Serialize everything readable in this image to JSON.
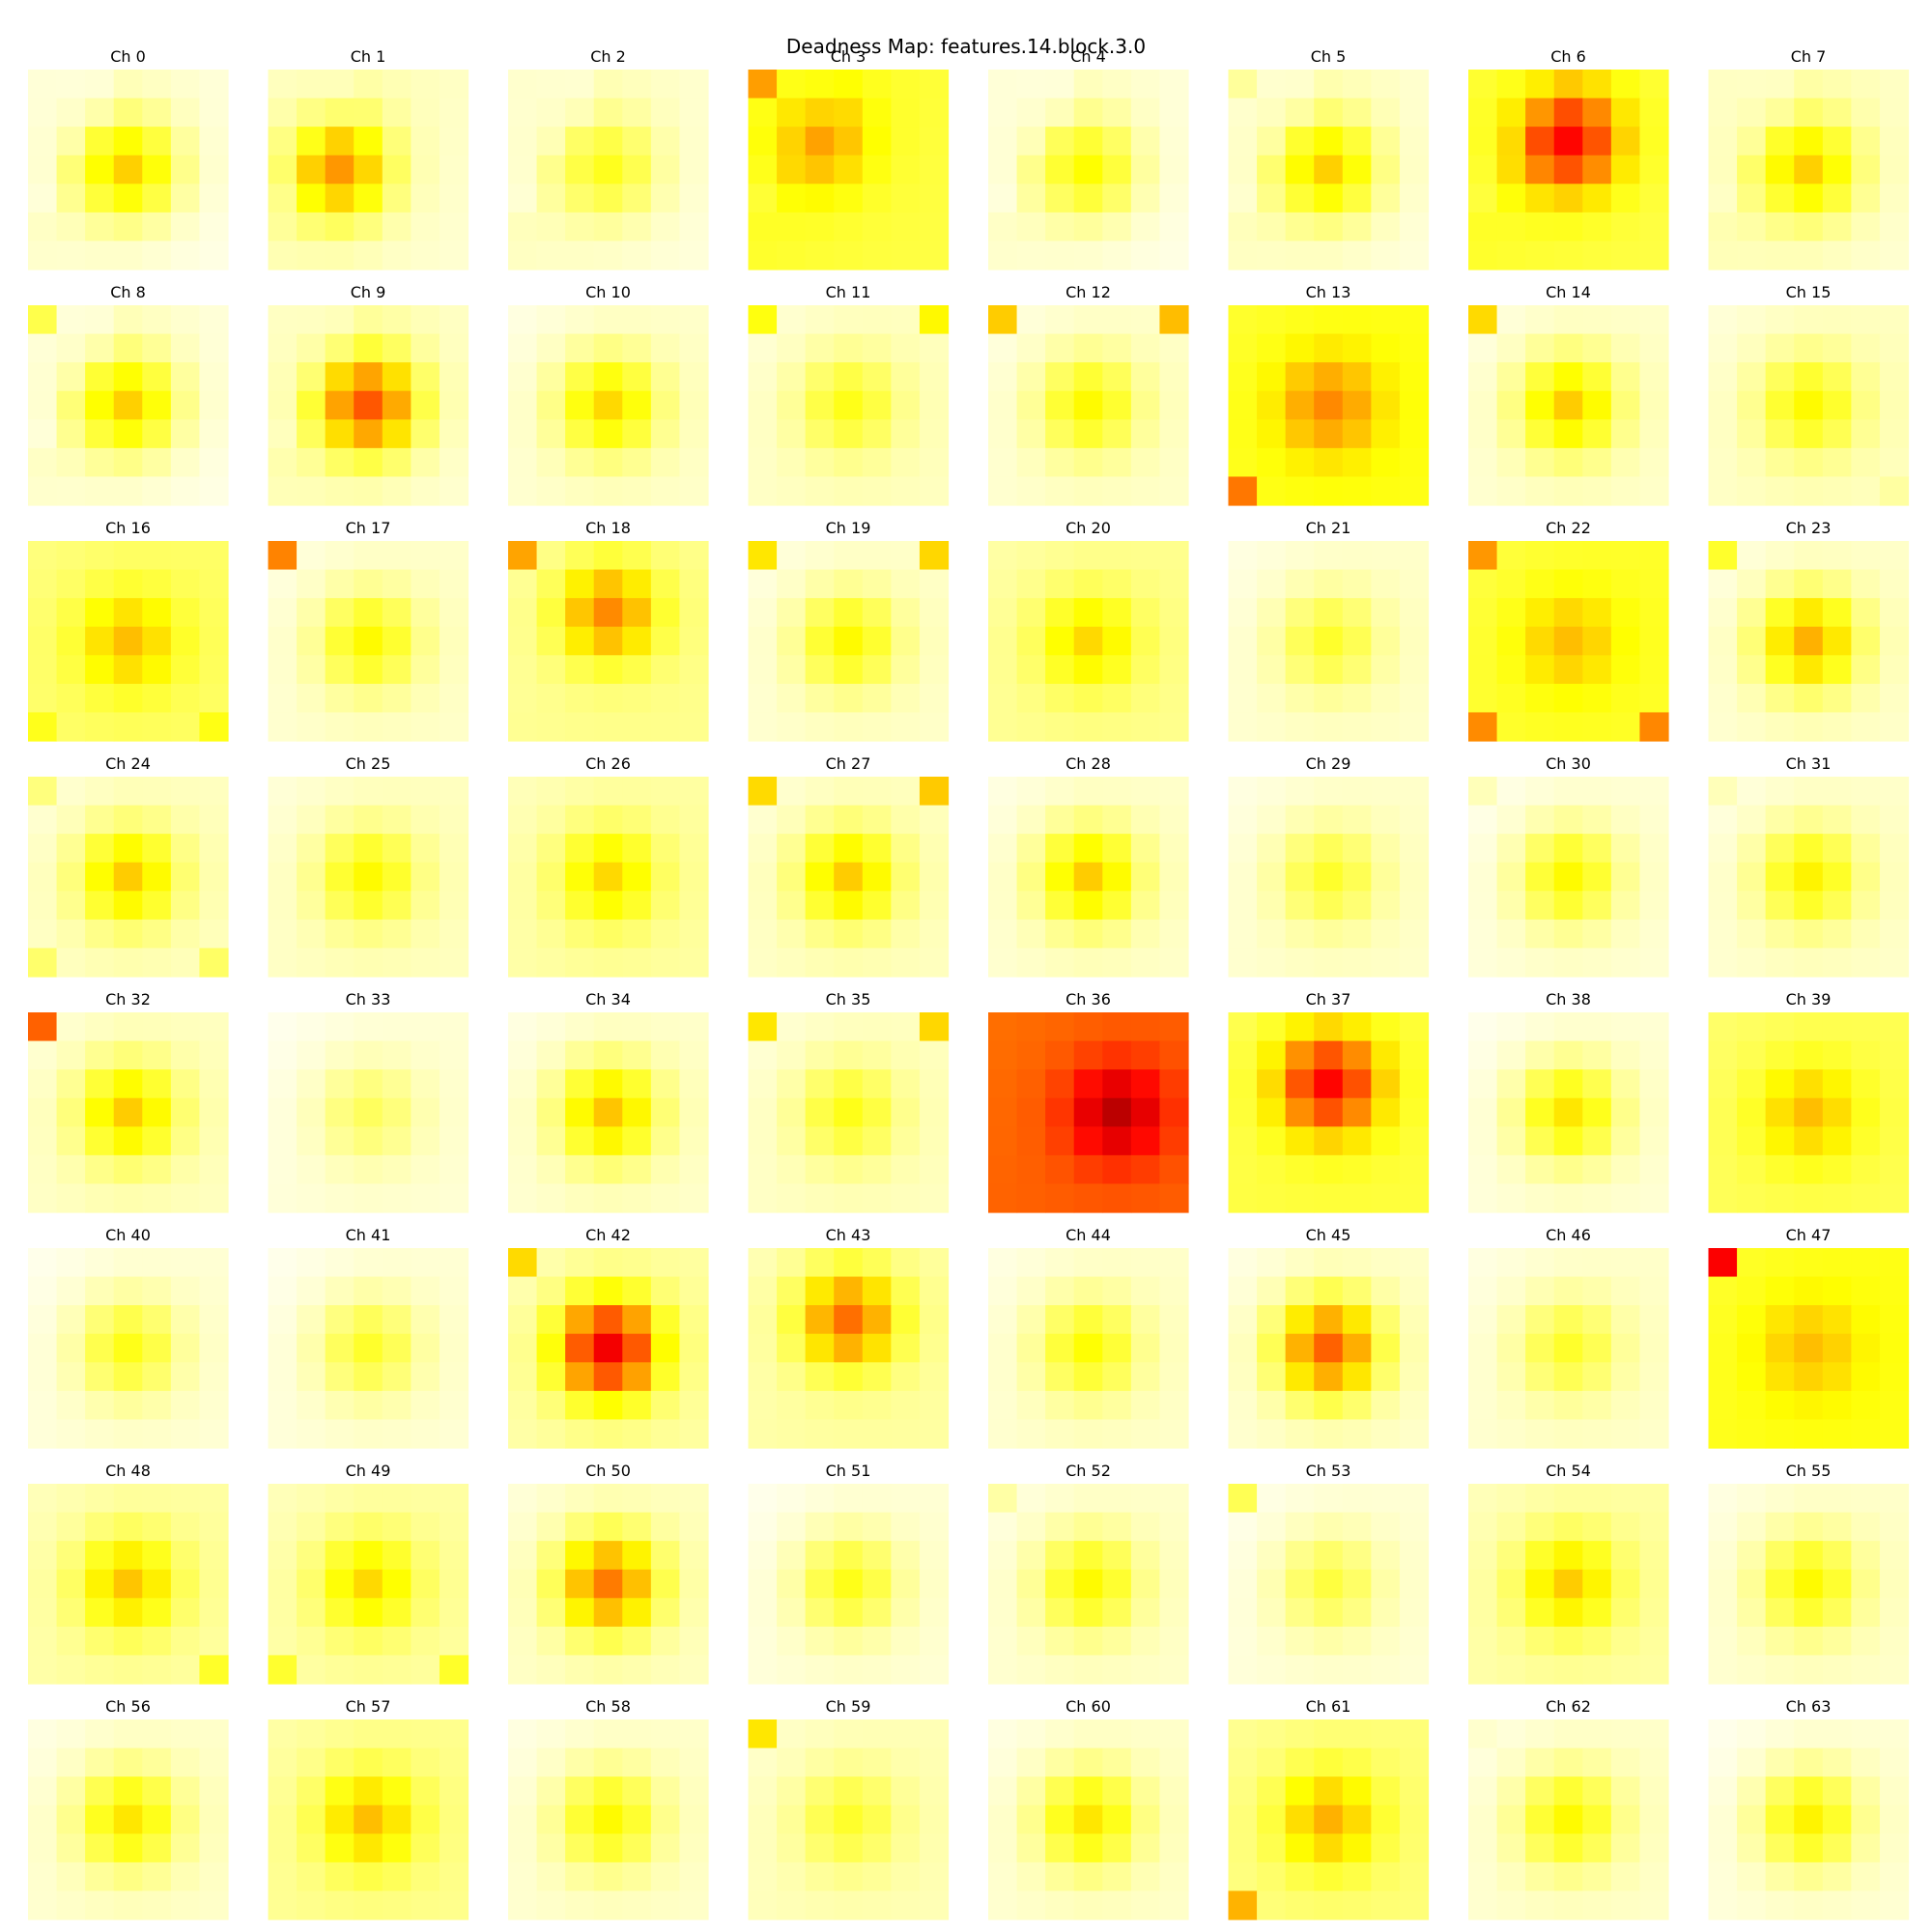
{
  "chart_data": {
    "type": "heatmap",
    "title": "Deadness Map: features.14.block.3.0",
    "colormap": "hot_r",
    "vmin": 0.0,
    "vmax": 1.0,
    "grid": false,
    "panels": [
      {
        "title": "Ch 0",
        "mode": "center",
        "edge": 0.04,
        "peak": 0.32,
        "corner": 0.04,
        "corner_pos": "",
        "offset": [
          0,
          0
        ]
      },
      {
        "title": "Ch 1",
        "mode": "center",
        "edge": 0.06,
        "peak": 0.4,
        "corner": 0.06,
        "corner_pos": "",
        "offset": [
          -1,
          0
        ]
      },
      {
        "title": "Ch 2",
        "mode": "center",
        "edge": 0.05,
        "peak": 0.22,
        "corner": 0.05,
        "corner_pos": "",
        "offset": [
          0,
          0
        ]
      },
      {
        "title": "Ch 3",
        "mode": "center",
        "edge": 0.2,
        "peak": 0.38,
        "corner": 0.4,
        "corner_pos": "tl",
        "offset": [
          -1,
          -1
        ]
      },
      {
        "title": "Ch 4",
        "mode": "center",
        "edge": 0.04,
        "peak": 0.25,
        "corner": 0.04,
        "corner_pos": "",
        "offset": [
          0,
          0
        ]
      },
      {
        "title": "Ch 5",
        "mode": "center",
        "edge": 0.05,
        "peak": 0.32,
        "corner": 0.1,
        "corner_pos": "tl",
        "offset": [
          0,
          0
        ]
      },
      {
        "title": "Ch 6",
        "mode": "center",
        "edge": 0.2,
        "peak": 0.62,
        "corner": 0.2,
        "corner_pos": "",
        "offset": [
          0,
          -1
        ]
      },
      {
        "title": "Ch 7",
        "mode": "center",
        "edge": 0.06,
        "peak": 0.32,
        "corner": 0.06,
        "corner_pos": "",
        "offset": [
          0,
          0
        ]
      },
      {
        "title": "Ch 8",
        "mode": "center",
        "edge": 0.04,
        "peak": 0.32,
        "corner": 0.18,
        "corner_pos": "tl",
        "offset": [
          0,
          0
        ]
      },
      {
        "title": "Ch 9",
        "mode": "center",
        "edge": 0.06,
        "peak": 0.5,
        "corner": 0.06,
        "corner_pos": "",
        "offset": [
          0,
          0
        ]
      },
      {
        "title": "Ch 10",
        "mode": "center",
        "edge": 0.04,
        "peak": 0.3,
        "corner": 0.04,
        "corner_pos": "",
        "offset": [
          0,
          0
        ]
      },
      {
        "title": "Ch 11",
        "mode": "center",
        "edge": 0.05,
        "peak": 0.22,
        "corner": 0.25,
        "corner_pos": "tl,tr",
        "offset": [
          0,
          0
        ]
      },
      {
        "title": "Ch 12",
        "mode": "center",
        "edge": 0.04,
        "peak": 0.25,
        "corner": 0.34,
        "corner_pos": "tl,tr",
        "offset": [
          0,
          0
        ]
      },
      {
        "title": "Ch 13",
        "mode": "center",
        "edge": 0.22,
        "peak": 0.42,
        "corner": 0.45,
        "corner_pos": "bl",
        "offset": [
          0,
          0
        ]
      },
      {
        "title": "Ch 14",
        "mode": "center",
        "edge": 0.04,
        "peak": 0.32,
        "corner": 0.32,
        "corner_pos": "tl",
        "offset": [
          0,
          0
        ]
      },
      {
        "title": "Ch 15",
        "mode": "center",
        "edge": 0.05,
        "peak": 0.25,
        "corner": 0.08,
        "corner_pos": "br",
        "offset": [
          0,
          0
        ]
      },
      {
        "title": "Ch 16",
        "mode": "center",
        "edge": 0.14,
        "peak": 0.34,
        "corner": 0.22,
        "corner_pos": "bl,br",
        "offset": [
          0,
          0
        ]
      },
      {
        "title": "Ch 17",
        "mode": "center",
        "edge": 0.04,
        "peak": 0.25,
        "corner": 0.45,
        "corner_pos": "tl",
        "offset": [
          0,
          0
        ]
      },
      {
        "title": "Ch 18",
        "mode": "center",
        "edge": 0.1,
        "peak": 0.42,
        "corner": 0.4,
        "corner_pos": "tl",
        "offset": [
          0,
          -1
        ]
      },
      {
        "title": "Ch 19",
        "mode": "center",
        "edge": 0.04,
        "peak": 0.25,
        "corner": 0.3,
        "corner_pos": "tl,tr",
        "offset": [
          0,
          0
        ]
      },
      {
        "title": "Ch 20",
        "mode": "center",
        "edge": 0.1,
        "peak": 0.3,
        "corner": 0.1,
        "corner_pos": "",
        "offset": [
          0,
          0
        ]
      },
      {
        "title": "Ch 21",
        "mode": "center",
        "edge": 0.04,
        "peak": 0.2,
        "corner": 0.04,
        "corner_pos": "",
        "offset": [
          0,
          0
        ]
      },
      {
        "title": "Ch 22",
        "mode": "center",
        "edge": 0.2,
        "peak": 0.34,
        "corner": 0.42,
        "corner_pos": "bl,tl,br",
        "offset": [
          0,
          0
        ]
      },
      {
        "title": "Ch 23",
        "mode": "center",
        "edge": 0.04,
        "peak": 0.36,
        "corner": 0.22,
        "corner_pos": "tl",
        "offset": [
          0,
          0
        ]
      },
      {
        "title": "Ch 24",
        "mode": "center",
        "edge": 0.05,
        "peak": 0.32,
        "corner": 0.14,
        "corner_pos": "tl,bl,br",
        "offset": [
          0,
          0
        ]
      },
      {
        "title": "Ch 25",
        "mode": "center",
        "edge": 0.05,
        "peak": 0.25,
        "corner": 0.05,
        "corner_pos": "",
        "offset": [
          0,
          0
        ]
      },
      {
        "title": "Ch 26",
        "mode": "center",
        "edge": 0.08,
        "peak": 0.3,
        "corner": 0.08,
        "corner_pos": "",
        "offset": [
          0,
          0
        ]
      },
      {
        "title": "Ch 27",
        "mode": "center",
        "edge": 0.05,
        "peak": 0.32,
        "corner": 0.32,
        "corner_pos": "tl,tr",
        "offset": [
          0,
          0
        ]
      },
      {
        "title": "Ch 28",
        "mode": "center",
        "edge": 0.04,
        "peak": 0.32,
        "corner": 0.04,
        "corner_pos": "",
        "offset": [
          0,
          0
        ]
      },
      {
        "title": "Ch 29",
        "mode": "center",
        "edge": 0.04,
        "peak": 0.2,
        "corner": 0.04,
        "corner_pos": "",
        "offset": [
          0,
          0
        ]
      },
      {
        "title": "Ch 30",
        "mode": "center",
        "edge": 0.03,
        "peak": 0.25,
        "corner": 0.08,
        "corner_pos": "tl",
        "offset": [
          0,
          0
        ]
      },
      {
        "title": "Ch 31",
        "mode": "center",
        "edge": 0.04,
        "peak": 0.26,
        "corner": 0.08,
        "corner_pos": "tl",
        "offset": [
          0,
          0
        ]
      },
      {
        "title": "Ch 32",
        "mode": "center",
        "edge": 0.05,
        "peak": 0.32,
        "corner": 0.5,
        "corner_pos": "tl",
        "offset": [
          0,
          0
        ]
      },
      {
        "title": "Ch 33",
        "mode": "center",
        "edge": 0.03,
        "peak": 0.15,
        "corner": 0.03,
        "corner_pos": "",
        "offset": [
          0,
          0
        ]
      },
      {
        "title": "Ch 34",
        "mode": "center",
        "edge": 0.04,
        "peak": 0.33,
        "corner": 0.04,
        "corner_pos": "",
        "offset": [
          0,
          0
        ]
      },
      {
        "title": "Ch 35",
        "mode": "center",
        "edge": 0.05,
        "peak": 0.22,
        "corner": 0.3,
        "corner_pos": "tl,tr",
        "offset": [
          0,
          0
        ]
      },
      {
        "title": "Ch 36",
        "mode": "center",
        "edge": 0.48,
        "peak": 0.72,
        "corner": 0.48,
        "corner_pos": "",
        "offset": [
          1,
          0
        ]
      },
      {
        "title": "Ch 37",
        "mode": "center",
        "edge": 0.18,
        "peak": 0.62,
        "corner": 0.18,
        "corner_pos": "",
        "offset": [
          0,
          -1
        ]
      },
      {
        "title": "Ch 38",
        "mode": "center",
        "edge": 0.03,
        "peak": 0.28,
        "corner": 0.03,
        "corner_pos": "",
        "offset": [
          0,
          0
        ]
      },
      {
        "title": "Ch 39",
        "mode": "center",
        "edge": 0.16,
        "peak": 0.34,
        "corner": 0.16,
        "corner_pos": "",
        "offset": [
          0,
          0
        ]
      },
      {
        "title": "Ch 40",
        "mode": "center",
        "edge": 0.03,
        "peak": 0.22,
        "corner": 0.03,
        "corner_pos": "",
        "offset": [
          0,
          0
        ]
      },
      {
        "title": "Ch 41",
        "mode": "center",
        "edge": 0.03,
        "peak": 0.2,
        "corner": 0.03,
        "corner_pos": "",
        "offset": [
          0,
          0
        ]
      },
      {
        "title": "Ch 42",
        "mode": "center",
        "edge": 0.08,
        "peak": 0.64,
        "corner": 0.32,
        "corner_pos": "tl",
        "offset": [
          0,
          0
        ]
      },
      {
        "title": "Ch 43",
        "mode": "center",
        "edge": 0.08,
        "peak": 0.46,
        "corner": 0.08,
        "corner_pos": "",
        "offset": [
          0,
          -1
        ]
      },
      {
        "title": "Ch 44",
        "mode": "center",
        "edge": 0.04,
        "peak": 0.24,
        "corner": 0.04,
        "corner_pos": "",
        "offset": [
          0,
          0
        ]
      },
      {
        "title": "Ch 45",
        "mode": "center",
        "edge": 0.04,
        "peak": 0.48,
        "corner": 0.04,
        "corner_pos": "",
        "offset": [
          0,
          0
        ]
      },
      {
        "title": "Ch 46",
        "mode": "center",
        "edge": 0.04,
        "peak": 0.2,
        "corner": 0.04,
        "corner_pos": "",
        "offset": [
          0,
          0
        ]
      },
      {
        "title": "Ch 47",
        "mode": "center",
        "edge": 0.22,
        "peak": 0.34,
        "corner": 0.65,
        "corner_pos": "tl",
        "offset": [
          0,
          0
        ]
      },
      {
        "title": "Ch 48",
        "mode": "center",
        "edge": 0.08,
        "peak": 0.33,
        "corner": 0.2,
        "corner_pos": "br",
        "offset": [
          0,
          0
        ]
      },
      {
        "title": "Ch 49",
        "mode": "center",
        "edge": 0.08,
        "peak": 0.3,
        "corner": 0.2,
        "corner_pos": "bl,br",
        "offset": [
          0,
          0
        ]
      },
      {
        "title": "Ch 50",
        "mode": "center",
        "edge": 0.05,
        "peak": 0.44,
        "corner": 0.05,
        "corner_pos": "",
        "offset": [
          0,
          0
        ]
      },
      {
        "title": "Ch 51",
        "mode": "center",
        "edge": 0.03,
        "peak": 0.22,
        "corner": 0.03,
        "corner_pos": "",
        "offset": [
          0,
          0
        ]
      },
      {
        "title": "Ch 52",
        "mode": "center",
        "edge": 0.04,
        "peak": 0.25,
        "corner": 0.1,
        "corner_pos": "tl",
        "offset": [
          0,
          0
        ]
      },
      {
        "title": "Ch 53",
        "mode": "center",
        "edge": 0.03,
        "peak": 0.18,
        "corner": 0.18,
        "corner_pos": "tl",
        "offset": [
          0,
          0
        ]
      },
      {
        "title": "Ch 54",
        "mode": "center",
        "edge": 0.08,
        "peak": 0.32,
        "corner": 0.08,
        "corner_pos": "",
        "offset": [
          0,
          0
        ]
      },
      {
        "title": "Ch 55",
        "mode": "center",
        "edge": 0.04,
        "peak": 0.25,
        "corner": 0.04,
        "corner_pos": "",
        "offset": [
          0,
          0
        ]
      },
      {
        "title": "Ch 56",
        "mode": "center",
        "edge": 0.04,
        "peak": 0.28,
        "corner": 0.04,
        "corner_pos": "",
        "offset": [
          0,
          0
        ]
      },
      {
        "title": "Ch 57",
        "mode": "center",
        "edge": 0.1,
        "peak": 0.34,
        "corner": 0.1,
        "corner_pos": "",
        "offset": [
          0,
          0
        ]
      },
      {
        "title": "Ch 58",
        "mode": "center",
        "edge": 0.04,
        "peak": 0.25,
        "corner": 0.04,
        "corner_pos": "",
        "offset": [
          0,
          0
        ]
      },
      {
        "title": "Ch 59",
        "mode": "center",
        "edge": 0.06,
        "peak": 0.2,
        "corner": 0.3,
        "corner_pos": "tl",
        "offset": [
          0,
          0
        ]
      },
      {
        "title": "Ch 60",
        "mode": "center",
        "edge": 0.04,
        "peak": 0.28,
        "corner": 0.04,
        "corner_pos": "",
        "offset": [
          0,
          0
        ]
      },
      {
        "title": "Ch 61",
        "mode": "center",
        "edge": 0.12,
        "peak": 0.36,
        "corner": 0.36,
        "corner_pos": "bl",
        "offset": [
          0,
          0
        ]
      },
      {
        "title": "Ch 62",
        "mode": "center",
        "edge": 0.04,
        "peak": 0.25,
        "corner": 0.06,
        "corner_pos": "tl",
        "offset": [
          0,
          0
        ]
      },
      {
        "title": "Ch 63",
        "mode": "center",
        "edge": 0.03,
        "peak": 0.26,
        "corner": 0.03,
        "corner_pos": "",
        "offset": [
          0,
          0
        ]
      }
    ]
  }
}
